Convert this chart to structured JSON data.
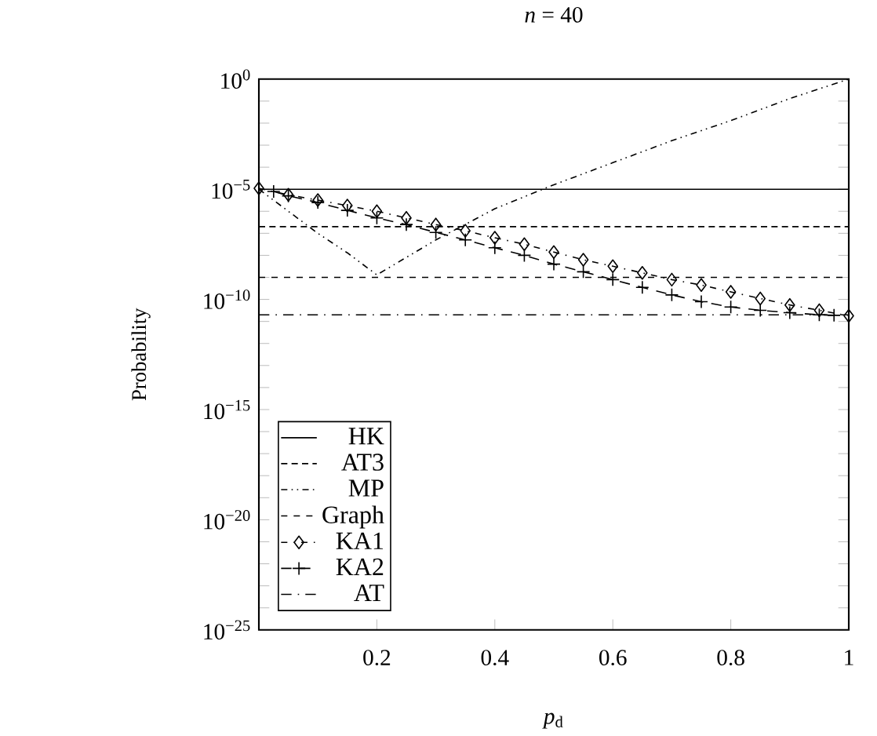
{
  "chart_data": {
    "type": "line",
    "title": "*n* = 40",
    "xlabel": "*p*$_{d}$",
    "ylabel": "Probability",
    "xlim": [
      0,
      1
    ],
    "xticks": [
      0.2,
      0.4,
      0.6,
      0.8,
      1
    ],
    "ylim": [
      1e-25,
      1
    ],
    "log": "y",
    "yticks": [
      {
        "value": 1,
        "label": "10$^{0}$"
      },
      {
        "value": 0.1,
        "label": null
      },
      {
        "value": 0.01,
        "label": null
      },
      {
        "value": 0.001,
        "label": null
      },
      {
        "value": 0.0001,
        "label": null
      },
      {
        "value": 1e-05,
        "label": "10$^{−5}$"
      },
      {
        "value": 1e-06,
        "label": null
      },
      {
        "value": 1e-07,
        "label": null
      },
      {
        "value": 1e-08,
        "label": null
      },
      {
        "value": 1e-09,
        "label": null
      },
      {
        "value": 1e-10,
        "label": "10$^{−10}$"
      },
      {
        "value": 1e-11,
        "label": null
      },
      {
        "value": 1e-12,
        "label": null
      },
      {
        "value": 1e-13,
        "label": null
      },
      {
        "value": 1e-14,
        "label": null
      },
      {
        "value": 1e-15,
        "label": "10$^{−15}$"
      },
      {
        "value": 1e-16,
        "label": null
      },
      {
        "value": 1e-17,
        "label": null
      },
      {
        "value": 1e-18,
        "label": null
      },
      {
        "value": 1e-19,
        "label": null
      },
      {
        "value": 1e-20,
        "label": "10$^{−20}$"
      },
      {
        "value": 1e-21,
        "label": null
      },
      {
        "value": 1e-22,
        "label": null
      },
      {
        "value": 1e-23,
        "label": null
      },
      {
        "value": 1e-24,
        "label": null
      },
      {
        "value": 1e-25,
        "label": "10$^{−25}$"
      }
    ],
    "grid": false,
    "legend": "bottom left",
    "series": [
      {
        "name": "HK",
        "color": "#000000",
        "line_style": "solid",
        "marker": "none",
        "x": [
          0,
          1
        ],
        "values": [
          1e-05,
          1e-05
        ]
      },
      {
        "name": "AT3",
        "color": "#000000",
        "line_style": "densely dashed",
        "marker": "none",
        "x": [
          0,
          1
        ],
        "values": [
          2e-07,
          2e-07
        ]
      },
      {
        "name": "MP",
        "color": "#000000",
        "line_style": "dashdotdot",
        "marker": "none",
        "x": [
          0,
          0.05,
          0.1,
          0.15,
          0.2,
          0.3,
          0.4,
          0.5,
          0.6,
          0.7,
          0.8,
          0.9,
          1
        ],
        "values": [
          1e-05,
          1e-06,
          1e-07,
          1.3e-08,
          1.3e-09,
          5e-08,
          1.3e-06,
          1.6e-05,
          0.00016,
          0.0016,
          0.013,
          0.13,
          1
        ]
      },
      {
        "name": "Graph",
        "color": "#000000",
        "line_style": "dashed",
        "marker": "none",
        "x": [
          0,
          1
        ],
        "values": [
          1e-09,
          1e-09
        ]
      },
      {
        "name": "KA1",
        "color": "#000000",
        "line_style": "dashdot",
        "marker": "diamond",
        "x": [
          0,
          0.05,
          0.1,
          0.15,
          0.2,
          0.25,
          0.3,
          0.35,
          0.4,
          0.45,
          0.5,
          0.55,
          0.6,
          0.65,
          0.7,
          0.75,
          0.8,
          0.85,
          0.9,
          0.95,
          1
        ],
        "values": [
          1.1e-05,
          5.6e-06,
          3.2e-06,
          1.8e-06,
          1e-06,
          5e-07,
          2.5e-07,
          1.3e-07,
          6.3e-08,
          3.2e-08,
          1.4e-08,
          6.3e-09,
          3.2e-09,
          1.6e-09,
          7.9e-10,
          4.5e-10,
          2.2e-10,
          1.1e-10,
          5.6e-11,
          3.2e-11,
          1.8e-11
        ]
      },
      {
        "name": "KA2",
        "color": "#000000",
        "line_style": "loosely dashed",
        "marker": "cross",
        "x": [
          0.025,
          0.05,
          0.1,
          0.15,
          0.2,
          0.25,
          0.3,
          0.35,
          0.4,
          0.45,
          0.5,
          0.55,
          0.6,
          0.65,
          0.7,
          0.75,
          0.8,
          0.85,
          0.9,
          0.95,
          0.975
        ],
        "values": [
          7.9e-06,
          5e-06,
          2.5e-06,
          1.1e-06,
          5e-07,
          2.5e-07,
          1.1e-07,
          5e-08,
          2.2e-08,
          1e-08,
          4e-09,
          1.8e-09,
          7.9e-10,
          3.5e-10,
          1.6e-10,
          7.9e-11,
          4.5e-11,
          3.2e-11,
          2.5e-11,
          2e-11,
          1.9e-11
        ]
      },
      {
        "name": "AT",
        "color": "#000000",
        "line_style": "loosely dashdot",
        "marker": "none",
        "x": [
          0,
          1
        ],
        "values": [
          2e-11,
          2e-11
        ]
      }
    ]
  }
}
